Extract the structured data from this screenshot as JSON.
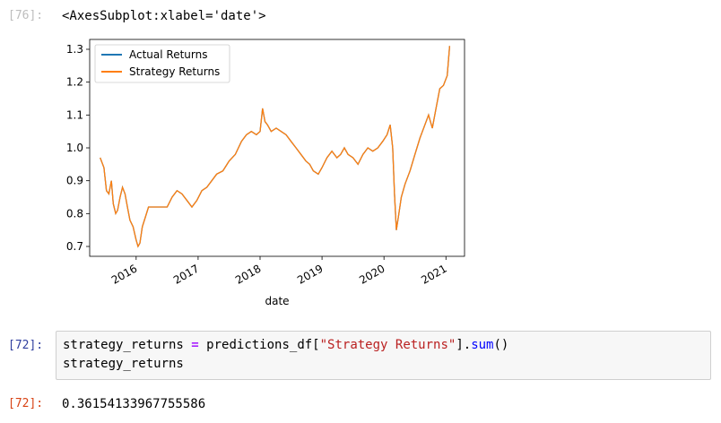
{
  "cells": {
    "output76": {
      "prompt": "[76]:",
      "text": "<AxesSubplot:xlabel='date'>"
    },
    "input72": {
      "prompt": "[72]:",
      "line1": {
        "var": "strategy_returns",
        "eq": "=",
        "obj": "predictions_df[",
        "key": "\"Strategy Returns\"",
        "close": "].",
        "method": "sum",
        "paren": "()"
      },
      "line2": "strategy_returns"
    },
    "output72": {
      "prompt": "[72]:",
      "text": "0.36154133967755586"
    }
  },
  "colors": {
    "actual": "#1f77b4",
    "strategy": "#ff7f0e",
    "prompt_in": "#303f9f",
    "prompt_out": "#d84315"
  },
  "chart_data": {
    "type": "line",
    "xlabel": "date",
    "ylabel": "",
    "x_ticks": [
      "2016",
      "2017",
      "2018",
      "2019",
      "2020",
      "2021"
    ],
    "y_ticks": [
      "0.7",
      "0.8",
      "0.9",
      "1.0",
      "1.1",
      "1.2",
      "1.3"
    ],
    "ylim": [
      0.67,
      1.33
    ],
    "xlim": [
      2015.25,
      2021.3
    ],
    "legend_position": "upper left",
    "series": [
      {
        "name": "Actual Returns",
        "color": "#1f77b4",
        "x": [],
        "y": []
      },
      {
        "name": "Strategy Returns",
        "color": "#ff7f0e",
        "x": [
          2015.42,
          2015.48,
          2015.52,
          2015.56,
          2015.6,
          2015.63,
          2015.67,
          2015.7,
          2015.74,
          2015.78,
          2015.82,
          2015.86,
          2015.9,
          2015.95,
          2016.0,
          2016.03,
          2016.06,
          2016.1,
          2016.15,
          2016.2,
          2016.26,
          2016.3,
          2016.4,
          2016.5,
          2016.58,
          2016.66,
          2016.74,
          2016.82,
          2016.9,
          2016.98,
          2017.06,
          2017.14,
          2017.22,
          2017.3,
          2017.4,
          2017.5,
          2017.6,
          2017.7,
          2017.78,
          2017.86,
          2017.94,
          2018.0,
          2018.04,
          2018.08,
          2018.12,
          2018.18,
          2018.26,
          2018.34,
          2018.42,
          2018.5,
          2018.58,
          2018.66,
          2018.74,
          2018.8,
          2018.86,
          2018.94,
          2019.0,
          2019.08,
          2019.16,
          2019.24,
          2019.3,
          2019.36,
          2019.42,
          2019.5,
          2019.58,
          2019.66,
          2019.74,
          2019.82,
          2019.9,
          2019.98,
          2020.05,
          2020.1,
          2020.14,
          2020.17,
          2020.2,
          2020.24,
          2020.28,
          2020.34,
          2020.42,
          2020.5,
          2020.58,
          2020.66,
          2020.72,
          2020.78,
          2020.84,
          2020.9,
          2020.96,
          2021.02,
          2021.06
        ],
        "y": [
          0.97,
          0.94,
          0.87,
          0.86,
          0.9,
          0.83,
          0.8,
          0.81,
          0.85,
          0.88,
          0.86,
          0.82,
          0.78,
          0.76,
          0.72,
          0.7,
          0.71,
          0.76,
          0.79,
          0.82,
          0.82,
          0.82,
          0.82,
          0.82,
          0.85,
          0.87,
          0.86,
          0.84,
          0.82,
          0.84,
          0.87,
          0.88,
          0.9,
          0.92,
          0.93,
          0.96,
          0.98,
          1.02,
          1.04,
          1.05,
          1.04,
          1.05,
          1.12,
          1.08,
          1.07,
          1.05,
          1.06,
          1.05,
          1.04,
          1.02,
          1.0,
          0.98,
          0.96,
          0.95,
          0.93,
          0.92,
          0.94,
          0.97,
          0.99,
          0.97,
          0.98,
          1.0,
          0.98,
          0.97,
          0.95,
          0.98,
          1.0,
          0.99,
          1.0,
          1.02,
          1.04,
          1.07,
          1.0,
          0.86,
          0.75,
          0.8,
          0.85,
          0.89,
          0.93,
          0.98,
          1.03,
          1.07,
          1.1,
          1.06,
          1.12,
          1.18,
          1.19,
          1.22,
          1.31
        ]
      }
    ]
  }
}
